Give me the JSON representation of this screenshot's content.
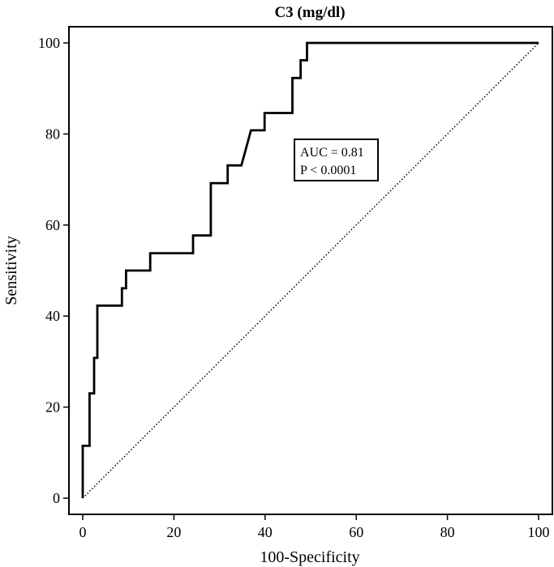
{
  "chart_data": {
    "type": "line",
    "title": "C3 (mg/dl)",
    "xlabel": "100-Specificity",
    "ylabel": "Sensitivity",
    "xlim": [
      0,
      100
    ],
    "ylim": [
      0,
      100
    ],
    "x_ticks": [
      "0",
      "20",
      "40",
      "60",
      "80",
      "100"
    ],
    "y_ticks": [
      "0",
      "20",
      "40",
      "60",
      "80",
      "100"
    ],
    "x_tick_values": [
      0,
      20,
      40,
      60,
      80,
      100
    ],
    "y_tick_values": [
      0,
      20,
      40,
      60,
      80,
      100
    ],
    "grid": false,
    "series": [
      {
        "style": "solid",
        "color": "#000000",
        "points": [
          [
            0,
            0
          ],
          [
            0,
            11.5
          ],
          [
            1.5,
            11.5
          ],
          [
            1.5,
            23
          ],
          [
            2.5,
            23
          ],
          [
            2.5,
            30.8
          ],
          [
            3.2,
            30.8
          ],
          [
            3.2,
            42.3
          ],
          [
            8.6,
            42.3
          ],
          [
            8.6,
            46.1
          ],
          [
            9.5,
            46.1
          ],
          [
            9.5,
            50
          ],
          [
            14.8,
            50
          ],
          [
            14.8,
            53.8
          ],
          [
            24.2,
            53.8
          ],
          [
            24.2,
            57.7
          ],
          [
            28.1,
            57.7
          ],
          [
            28.1,
            69.2
          ],
          [
            31.8,
            69.2
          ],
          [
            31.8,
            73.1
          ],
          [
            34.8,
            73.1
          ],
          [
            36.9,
            80.8
          ],
          [
            39.9,
            80.8
          ],
          [
            39.9,
            84.6
          ],
          [
            46,
            84.6
          ],
          [
            46,
            92.3
          ],
          [
            47.8,
            92.3
          ],
          [
            47.8,
            96.2
          ],
          [
            49.2,
            96.2
          ],
          [
            49.2,
            100
          ],
          [
            100,
            100
          ]
        ]
      },
      {
        "style": "dotted",
        "color": "#000000",
        "points": [
          [
            0,
            0
          ],
          [
            100,
            100
          ]
        ]
      }
    ],
    "annotations": [
      "AUC = 0.81",
      "P < 0.0001"
    ]
  }
}
